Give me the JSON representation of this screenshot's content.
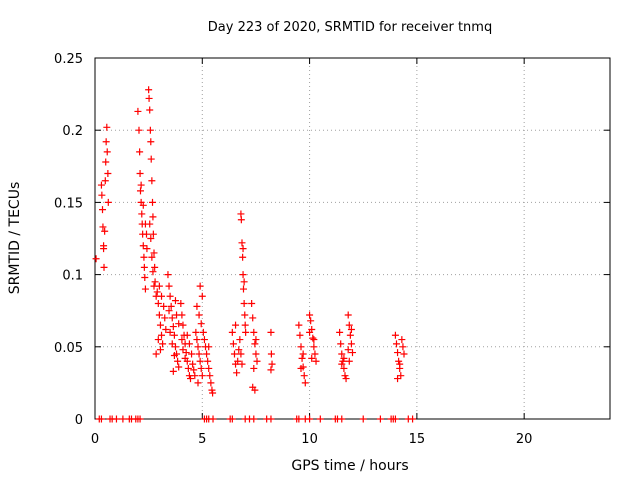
{
  "chart_data": {
    "type": "scatter",
    "title": "Day 223 of 2020, SRMTID for receiver tnmq",
    "xlabel": "GPS time / hours",
    "ylabel": "SRMTID / TECUs",
    "xlim": [
      0,
      24
    ],
    "ylim": [
      0,
      0.25
    ],
    "xticks": [
      0,
      5,
      10,
      15,
      20
    ],
    "xtick_labels": [
      "0",
      "5",
      "10",
      "15",
      "20"
    ],
    "yticks": [
      0,
      0.05,
      0.1,
      0.15,
      0.2,
      0.25
    ],
    "ytick_labels": [
      "0",
      "0.05",
      "0.1",
      "0.15",
      "0.2",
      "0.25"
    ],
    "grid": true,
    "marker": "+",
    "series": [
      {
        "name": "SRMTID",
        "color": "#ff0000",
        "points": [
          [
            0.05,
            0.111
          ],
          [
            0.3,
            0.162
          ],
          [
            0.32,
            0.155
          ],
          [
            0.35,
            0.145
          ],
          [
            0.37,
            0.133
          ],
          [
            0.4,
            0.12
          ],
          [
            0.42,
            0.105
          ],
          [
            0.45,
            0.13
          ],
          [
            0.48,
            0.165
          ],
          [
            0.5,
            0.178
          ],
          [
            0.52,
            0.192
          ],
          [
            0.55,
            0.202
          ],
          [
            0.57,
            0.185
          ],
          [
            0.6,
            0.17
          ],
          [
            0.62,
            0.15
          ],
          [
            0.4,
            0.118
          ],
          [
            2.0,
            0.213
          ],
          [
            2.05,
            0.2
          ],
          [
            2.08,
            0.185
          ],
          [
            2.1,
            0.17
          ],
          [
            2.12,
            0.158
          ],
          [
            2.15,
            0.15
          ],
          [
            2.18,
            0.142
          ],
          [
            2.2,
            0.135
          ],
          [
            2.22,
            0.128
          ],
          [
            2.25,
            0.12
          ],
          [
            2.28,
            0.112
          ],
          [
            2.3,
            0.105
          ],
          [
            2.32,
            0.098
          ],
          [
            2.35,
            0.09
          ],
          [
            2.15,
            0.162
          ],
          [
            2.25,
            0.148
          ],
          [
            2.35,
            0.135
          ],
          [
            2.4,
            0.128
          ],
          [
            2.42,
            0.118
          ],
          [
            2.5,
            0.228
          ],
          [
            2.52,
            0.222
          ],
          [
            2.55,
            0.214
          ],
          [
            2.58,
            0.2
          ],
          [
            2.6,
            0.192
          ],
          [
            2.62,
            0.18
          ],
          [
            2.65,
            0.165
          ],
          [
            2.68,
            0.15
          ],
          [
            2.7,
            0.14
          ],
          [
            2.72,
            0.128
          ],
          [
            2.75,
            0.115
          ],
          [
            2.78,
            0.105
          ],
          [
            2.8,
            0.095
          ],
          [
            2.55,
            0.135
          ],
          [
            2.6,
            0.125
          ],
          [
            2.65,
            0.112
          ],
          [
            2.7,
            0.102
          ],
          [
            2.75,
            0.092
          ],
          [
            2.85,
            0.085
          ],
          [
            2.9,
            0.088
          ],
          [
            2.95,
            0.08
          ],
          [
            3.0,
            0.072
          ],
          [
            3.05,
            0.065
          ],
          [
            3.1,
            0.058
          ],
          [
            3.15,
            0.052
          ],
          [
            3.0,
            0.092
          ],
          [
            3.1,
            0.085
          ],
          [
            3.2,
            0.078
          ],
          [
            3.25,
            0.07
          ],
          [
            3.3,
            0.062
          ],
          [
            2.95,
            0.055
          ],
          [
            3.05,
            0.048
          ],
          [
            2.85,
            0.045
          ],
          [
            3.4,
            0.1
          ],
          [
            3.45,
            0.092
          ],
          [
            3.5,
            0.085
          ],
          [
            3.55,
            0.078
          ],
          [
            3.6,
            0.07
          ],
          [
            3.65,
            0.064
          ],
          [
            3.7,
            0.058
          ],
          [
            3.75,
            0.05
          ],
          [
            3.8,
            0.045
          ],
          [
            3.85,
            0.04
          ],
          [
            3.9,
            0.036
          ],
          [
            3.5,
            0.06
          ],
          [
            3.6,
            0.052
          ],
          [
            3.7,
            0.044
          ],
          [
            3.8,
            0.072
          ],
          [
            3.9,
            0.066
          ],
          [
            3.65,
            0.033
          ],
          [
            3.45,
            0.075
          ],
          [
            3.75,
            0.082
          ],
          [
            4.0,
            0.08
          ],
          [
            4.05,
            0.072
          ],
          [
            4.1,
            0.065
          ],
          [
            4.15,
            0.058
          ],
          [
            4.2,
            0.052
          ],
          [
            4.25,
            0.046
          ],
          [
            4.3,
            0.04
          ],
          [
            4.35,
            0.035
          ],
          [
            4.4,
            0.03
          ],
          [
            4.45,
            0.028
          ],
          [
            4.1,
            0.048
          ],
          [
            4.2,
            0.042
          ],
          [
            4.3,
            0.058
          ],
          [
            4.4,
            0.052
          ],
          [
            4.5,
            0.045
          ],
          [
            4.55,
            0.038
          ],
          [
            4.6,
            0.034
          ],
          [
            4.65,
            0.03
          ],
          [
            4.05,
            0.055
          ],
          [
            4.7,
            0.06
          ],
          [
            4.75,
            0.055
          ],
          [
            4.8,
            0.05
          ],
          [
            4.85,
            0.045
          ],
          [
            4.9,
            0.04
          ],
          [
            4.95,
            0.035
          ],
          [
            5.0,
            0.03
          ],
          [
            4.75,
            0.078
          ],
          [
            4.85,
            0.072
          ],
          [
            4.95,
            0.066
          ],
          [
            5.05,
            0.06
          ],
          [
            5.1,
            0.055
          ],
          [
            5.15,
            0.05
          ],
          [
            4.9,
            0.092
          ],
          [
            5.0,
            0.085
          ],
          [
            4.8,
            0.025
          ],
          [
            5.2,
            0.045
          ],
          [
            5.25,
            0.04
          ],
          [
            5.3,
            0.035
          ],
          [
            5.35,
            0.03
          ],
          [
            5.4,
            0.025
          ],
          [
            5.45,
            0.02
          ],
          [
            5.48,
            0.018
          ],
          [
            5.3,
            0.05
          ],
          [
            6.4,
            0.06
          ],
          [
            6.45,
            0.052
          ],
          [
            6.5,
            0.045
          ],
          [
            6.55,
            0.038
          ],
          [
            6.6,
            0.032
          ],
          [
            6.65,
            0.04
          ],
          [
            6.7,
            0.048
          ],
          [
            6.75,
            0.055
          ],
          [
            6.8,
            0.045
          ],
          [
            6.85,
            0.038
          ],
          [
            6.55,
            0.065
          ],
          [
            6.8,
            0.142
          ],
          [
            6.82,
            0.138
          ],
          [
            6.85,
            0.122
          ],
          [
            6.88,
            0.112
          ],
          [
            6.9,
            0.1
          ],
          [
            6.92,
            0.09
          ],
          [
            6.95,
            0.08
          ],
          [
            6.98,
            0.072
          ],
          [
            7.0,
            0.065
          ],
          [
            6.9,
            0.118
          ],
          [
            6.95,
            0.095
          ],
          [
            7.02,
            0.06
          ],
          [
            7.3,
            0.08
          ],
          [
            7.35,
            0.07
          ],
          [
            7.4,
            0.06
          ],
          [
            7.45,
            0.052
          ],
          [
            7.5,
            0.045
          ],
          [
            7.55,
            0.04
          ],
          [
            7.4,
            0.035
          ],
          [
            7.35,
            0.022
          ],
          [
            7.45,
            0.02
          ],
          [
            7.5,
            0.055
          ],
          [
            8.2,
            0.06
          ],
          [
            8.22,
            0.045
          ],
          [
            8.25,
            0.038
          ],
          [
            8.2,
            0.034
          ],
          [
            9.5,
            0.065
          ],
          [
            9.55,
            0.058
          ],
          [
            9.6,
            0.05
          ],
          [
            9.65,
            0.042
          ],
          [
            9.7,
            0.036
          ],
          [
            9.75,
            0.03
          ],
          [
            9.8,
            0.025
          ],
          [
            9.6,
            0.035
          ],
          [
            9.7,
            0.045
          ],
          [
            10.0,
            0.072
          ],
          [
            10.05,
            0.068
          ],
          [
            10.1,
            0.062
          ],
          [
            10.15,
            0.056
          ],
          [
            10.2,
            0.05
          ],
          [
            10.25,
            0.045
          ],
          [
            10.3,
            0.04
          ],
          [
            10.1,
            0.042
          ],
          [
            10.2,
            0.055
          ],
          [
            10.0,
            0.06
          ],
          [
            11.4,
            0.06
          ],
          [
            11.45,
            0.052
          ],
          [
            11.5,
            0.045
          ],
          [
            11.55,
            0.04
          ],
          [
            11.6,
            0.035
          ],
          [
            11.65,
            0.03
          ],
          [
            11.7,
            0.028
          ],
          [
            11.5,
            0.038
          ],
          [
            11.6,
            0.042
          ],
          [
            11.8,
            0.072
          ],
          [
            11.85,
            0.065
          ],
          [
            11.9,
            0.058
          ],
          [
            11.95,
            0.052
          ],
          [
            12.0,
            0.046
          ],
          [
            11.85,
            0.04
          ],
          [
            11.95,
            0.062
          ],
          [
            11.8,
            0.048
          ],
          [
            14.0,
            0.058
          ],
          [
            14.05,
            0.052
          ],
          [
            14.1,
            0.046
          ],
          [
            14.15,
            0.04
          ],
          [
            14.2,
            0.035
          ],
          [
            14.25,
            0.03
          ],
          [
            14.3,
            0.055
          ],
          [
            14.35,
            0.05
          ],
          [
            14.4,
            0.045
          ],
          [
            14.1,
            0.028
          ],
          [
            14.2,
            0.038
          ]
        ],
        "zero_points_x": [
          0.2,
          0.3,
          0.7,
          0.8,
          1.0,
          1.3,
          1.6,
          1.7,
          1.9,
          2.0,
          2.1,
          5.1,
          5.2,
          5.3,
          5.5,
          6.3,
          6.4,
          7.0,
          7.2,
          7.4,
          8.0,
          8.2,
          9.4,
          9.5,
          9.8,
          10.0,
          10.5,
          11.2,
          11.3,
          11.5,
          12.5,
          13.3,
          13.8,
          13.9,
          14.0,
          14.6,
          14.8
        ]
      }
    ]
  }
}
